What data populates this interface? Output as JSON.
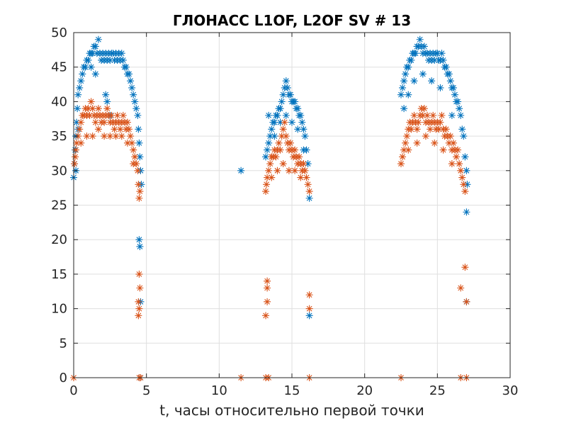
{
  "chart_data": {
    "type": "scatter",
    "title": "ГЛОНАСС L1OF, L2OF SV # 13",
    "xlabel": "t, часы относительно первой точки",
    "ylabel": "",
    "xlim": [
      0,
      30
    ],
    "ylim": [
      0,
      50
    ],
    "xticks": [
      0,
      5,
      10,
      15,
      20,
      25,
      30
    ],
    "yticks": [
      0,
      5,
      10,
      15,
      20,
      25,
      30,
      35,
      40,
      45,
      50
    ],
    "grid": true,
    "legend": "none",
    "marker": "asterisk",
    "series": [
      {
        "color": "#0072BD",
        "points": [
          [
            0.0,
            29
          ],
          [
            0.05,
            31
          ],
          [
            0.1,
            33
          ],
          [
            0.15,
            35
          ],
          [
            0.2,
            37
          ],
          [
            0.25,
            39
          ],
          [
            0.3,
            41
          ],
          [
            0.4,
            42
          ],
          [
            0.5,
            43
          ],
          [
            0.6,
            44
          ],
          [
            0.7,
            45
          ],
          [
            0.8,
            45
          ],
          [
            0.9,
            46
          ],
          [
            1.0,
            46
          ],
          [
            1.1,
            47
          ],
          [
            1.2,
            47
          ],
          [
            1.3,
            47
          ],
          [
            1.4,
            48
          ],
          [
            1.5,
            48
          ],
          [
            1.6,
            47
          ],
          [
            1.7,
            49
          ],
          [
            1.8,
            47
          ],
          [
            1.9,
            46
          ],
          [
            2.0,
            47
          ],
          [
            2.1,
            46
          ],
          [
            2.2,
            47
          ],
          [
            2.3,
            46
          ],
          [
            2.4,
            47
          ],
          [
            2.5,
            46
          ],
          [
            2.6,
            47
          ],
          [
            2.7,
            47
          ],
          [
            2.8,
            46
          ],
          [
            2.9,
            47
          ],
          [
            3.0,
            46
          ],
          [
            3.1,
            47
          ],
          [
            3.2,
            46
          ],
          [
            3.3,
            47
          ],
          [
            3.4,
            46
          ],
          [
            3.5,
            45
          ],
          [
            3.6,
            45
          ],
          [
            3.7,
            44
          ],
          [
            3.8,
            44
          ],
          [
            3.9,
            43
          ],
          [
            4.0,
            42
          ],
          [
            4.1,
            41
          ],
          [
            4.2,
            40
          ],
          [
            4.3,
            39
          ],
          [
            4.4,
            38
          ],
          [
            4.45,
            36
          ],
          [
            4.5,
            34
          ],
          [
            4.55,
            32
          ],
          [
            4.6,
            30
          ],
          [
            4.65,
            28
          ],
          [
            2.2,
            41
          ],
          [
            2.3,
            40
          ],
          [
            2.5,
            38
          ],
          [
            1.2,
            45
          ],
          [
            1.5,
            44
          ],
          [
            0.3,
            36
          ],
          [
            0.15,
            30
          ],
          [
            4.5,
            20
          ],
          [
            4.55,
            19
          ],
          [
            4.6,
            11
          ],
          [
            4.6,
            0
          ],
          [
            11.5,
            30
          ],
          [
            13.2,
            32
          ],
          [
            13.3,
            33
          ],
          [
            13.4,
            34
          ],
          [
            13.5,
            35
          ],
          [
            13.6,
            36
          ],
          [
            13.7,
            37
          ],
          [
            13.8,
            37
          ],
          [
            13.9,
            38
          ],
          [
            14.0,
            38
          ],
          [
            14.1,
            39
          ],
          [
            14.2,
            39
          ],
          [
            14.3,
            40
          ],
          [
            14.4,
            41
          ],
          [
            14.5,
            42
          ],
          [
            14.6,
            43
          ],
          [
            14.7,
            42
          ],
          [
            14.8,
            41
          ],
          [
            14.9,
            41
          ],
          [
            15.0,
            40
          ],
          [
            15.1,
            40
          ],
          [
            15.2,
            40
          ],
          [
            15.3,
            39
          ],
          [
            15.4,
            39
          ],
          [
            15.5,
            38
          ],
          [
            15.6,
            38
          ],
          [
            15.7,
            37
          ],
          [
            15.8,
            36
          ],
          [
            15.9,
            35
          ],
          [
            16.0,
            33
          ],
          [
            16.1,
            31
          ],
          [
            16.2,
            26
          ],
          [
            13.4,
            38
          ],
          [
            13.8,
            35
          ],
          [
            14.2,
            37
          ],
          [
            14.6,
            38
          ],
          [
            15.0,
            37
          ],
          [
            15.4,
            36
          ],
          [
            15.8,
            33
          ],
          [
            16.2,
            9
          ],
          [
            22.5,
            41
          ],
          [
            22.6,
            42
          ],
          [
            22.7,
            43
          ],
          [
            22.8,
            44
          ],
          [
            22.9,
            45
          ],
          [
            23.0,
            45
          ],
          [
            23.1,
            46
          ],
          [
            23.2,
            46
          ],
          [
            23.3,
            47
          ],
          [
            23.4,
            47
          ],
          [
            23.5,
            47
          ],
          [
            23.6,
            48
          ],
          [
            23.7,
            48
          ],
          [
            23.8,
            49
          ],
          [
            23.9,
            48
          ],
          [
            24.0,
            47
          ],
          [
            24.1,
            48
          ],
          [
            24.2,
            47
          ],
          [
            24.3,
            47
          ],
          [
            24.4,
            46
          ],
          [
            24.5,
            47
          ],
          [
            24.6,
            46
          ],
          [
            24.7,
            47
          ],
          [
            24.8,
            46
          ],
          [
            24.9,
            47
          ],
          [
            25.0,
            47
          ],
          [
            25.1,
            46
          ],
          [
            25.2,
            46
          ],
          [
            25.3,
            47
          ],
          [
            25.4,
            46
          ],
          [
            25.5,
            45
          ],
          [
            25.6,
            45
          ],
          [
            25.7,
            44
          ],
          [
            25.8,
            44
          ],
          [
            25.9,
            43
          ],
          [
            26.0,
            42
          ],
          [
            26.1,
            42
          ],
          [
            26.2,
            41
          ],
          [
            26.3,
            40
          ],
          [
            26.4,
            40
          ],
          [
            26.5,
            39
          ],
          [
            26.6,
            38
          ],
          [
            26.7,
            36
          ],
          [
            26.8,
            35
          ],
          [
            26.9,
            32
          ],
          [
            27.0,
            30
          ],
          [
            27.05,
            28
          ],
          [
            22.7,
            39
          ],
          [
            23.0,
            41
          ],
          [
            23.4,
            43
          ],
          [
            24.0,
            44
          ],
          [
            24.6,
            43
          ],
          [
            25.2,
            42
          ],
          [
            26.0,
            38
          ],
          [
            27.0,
            24
          ],
          [
            27.0,
            11
          ]
        ]
      },
      {
        "color": "#D95319",
        "points": [
          [
            0.0,
            0
          ],
          [
            0.05,
            31
          ],
          [
            0.1,
            32
          ],
          [
            0.15,
            33
          ],
          [
            0.2,
            34
          ],
          [
            0.3,
            35
          ],
          [
            0.4,
            36
          ],
          [
            0.5,
            37
          ],
          [
            0.6,
            38
          ],
          [
            0.7,
            38
          ],
          [
            0.8,
            39
          ],
          [
            0.9,
            38
          ],
          [
            1.0,
            39
          ],
          [
            1.1,
            38
          ],
          [
            1.2,
            40
          ],
          [
            1.3,
            39
          ],
          [
            1.4,
            38
          ],
          [
            1.5,
            37
          ],
          [
            1.6,
            38
          ],
          [
            1.7,
            39
          ],
          [
            1.8,
            38
          ],
          [
            1.9,
            37
          ],
          [
            2.0,
            38
          ],
          [
            2.1,
            37
          ],
          [
            2.2,
            38
          ],
          [
            2.3,
            39
          ],
          [
            2.4,
            38
          ],
          [
            2.5,
            37
          ],
          [
            2.6,
            38
          ],
          [
            2.7,
            37
          ],
          [
            2.8,
            36
          ],
          [
            2.9,
            37
          ],
          [
            3.0,
            38
          ],
          [
            3.1,
            37
          ],
          [
            3.2,
            36
          ],
          [
            3.3,
            37
          ],
          [
            3.4,
            38
          ],
          [
            3.5,
            37
          ],
          [
            3.6,
            36
          ],
          [
            3.7,
            37
          ],
          [
            3.8,
            36
          ],
          [
            3.9,
            35
          ],
          [
            4.0,
            34
          ],
          [
            4.1,
            33
          ],
          [
            4.2,
            32
          ],
          [
            4.3,
            31
          ],
          [
            4.4,
            30
          ],
          [
            4.45,
            28
          ],
          [
            4.5,
            26
          ],
          [
            4.55,
            27
          ],
          [
            0.5,
            34
          ],
          [
            0.9,
            35
          ],
          [
            1.3,
            35
          ],
          [
            1.7,
            36
          ],
          [
            2.1,
            35
          ],
          [
            2.5,
            35
          ],
          [
            2.9,
            35
          ],
          [
            3.3,
            35
          ],
          [
            3.7,
            34
          ],
          [
            4.1,
            31
          ],
          [
            4.5,
            15
          ],
          [
            4.55,
            13
          ],
          [
            4.45,
            11
          ],
          [
            4.5,
            10
          ],
          [
            4.45,
            9
          ],
          [
            4.5,
            0
          ],
          [
            4.6,
            0
          ],
          [
            11.5,
            0
          ],
          [
            13.2,
            27
          ],
          [
            13.25,
            28
          ],
          [
            13.3,
            29
          ],
          [
            13.4,
            30
          ],
          [
            13.5,
            31
          ],
          [
            13.6,
            32
          ],
          [
            13.7,
            32
          ],
          [
            13.8,
            33
          ],
          [
            13.9,
            32
          ],
          [
            14.0,
            33
          ],
          [
            14.1,
            34
          ],
          [
            14.2,
            33
          ],
          [
            14.3,
            35
          ],
          [
            14.4,
            36
          ],
          [
            14.5,
            37
          ],
          [
            14.6,
            35
          ],
          [
            14.7,
            34
          ],
          [
            14.8,
            33
          ],
          [
            14.9,
            34
          ],
          [
            15.0,
            33
          ],
          [
            15.1,
            32
          ],
          [
            15.2,
            33
          ],
          [
            15.3,
            32
          ],
          [
            15.4,
            31
          ],
          [
            15.5,
            32
          ],
          [
            15.6,
            31
          ],
          [
            15.7,
            30
          ],
          [
            15.8,
            31
          ],
          [
            15.9,
            30
          ],
          [
            16.0,
            29
          ],
          [
            16.1,
            28
          ],
          [
            16.2,
            27
          ],
          [
            13.6,
            29
          ],
          [
            14.0,
            30
          ],
          [
            14.4,
            31
          ],
          [
            14.8,
            30
          ],
          [
            15.2,
            30
          ],
          [
            15.6,
            29
          ],
          [
            13.3,
            14
          ],
          [
            13.3,
            13
          ],
          [
            13.2,
            9
          ],
          [
            13.3,
            11
          ],
          [
            13.2,
            0
          ],
          [
            13.4,
            0
          ],
          [
            16.2,
            12
          ],
          [
            16.2,
            10
          ],
          [
            16.2,
            0
          ],
          [
            22.5,
            0
          ],
          [
            22.5,
            31
          ],
          [
            22.6,
            32
          ],
          [
            22.7,
            33
          ],
          [
            22.8,
            34
          ],
          [
            22.9,
            35
          ],
          [
            23.0,
            36
          ],
          [
            23.1,
            37
          ],
          [
            23.2,
            36
          ],
          [
            23.3,
            37
          ],
          [
            23.4,
            38
          ],
          [
            23.5,
            37
          ],
          [
            23.6,
            36
          ],
          [
            23.7,
            37
          ],
          [
            23.8,
            38
          ],
          [
            23.9,
            39
          ],
          [
            24.0,
            38
          ],
          [
            24.1,
            39
          ],
          [
            24.2,
            37
          ],
          [
            24.3,
            38
          ],
          [
            24.4,
            37
          ],
          [
            24.5,
            36
          ],
          [
            24.6,
            37
          ],
          [
            24.7,
            38
          ],
          [
            24.8,
            37
          ],
          [
            24.9,
            36
          ],
          [
            25.0,
            37
          ],
          [
            25.1,
            36
          ],
          [
            25.2,
            37
          ],
          [
            25.3,
            38
          ],
          [
            25.4,
            36
          ],
          [
            25.5,
            35
          ],
          [
            25.6,
            36
          ],
          [
            25.7,
            35
          ],
          [
            25.8,
            34
          ],
          [
            25.9,
            35
          ],
          [
            26.0,
            33
          ],
          [
            26.1,
            34
          ],
          [
            26.2,
            33
          ],
          [
            26.3,
            32
          ],
          [
            26.4,
            33
          ],
          [
            26.5,
            31
          ],
          [
            26.6,
            30
          ],
          [
            26.7,
            29
          ],
          [
            26.8,
            28
          ],
          [
            26.9,
            27
          ],
          [
            23.0,
            33
          ],
          [
            23.6,
            34
          ],
          [
            24.2,
            35
          ],
          [
            24.8,
            34
          ],
          [
            25.4,
            33
          ],
          [
            26.0,
            31
          ],
          [
            26.6,
            13
          ],
          [
            26.9,
            16
          ],
          [
            27.0,
            11
          ],
          [
            26.6,
            0
          ],
          [
            27.0,
            0
          ]
        ]
      }
    ]
  }
}
